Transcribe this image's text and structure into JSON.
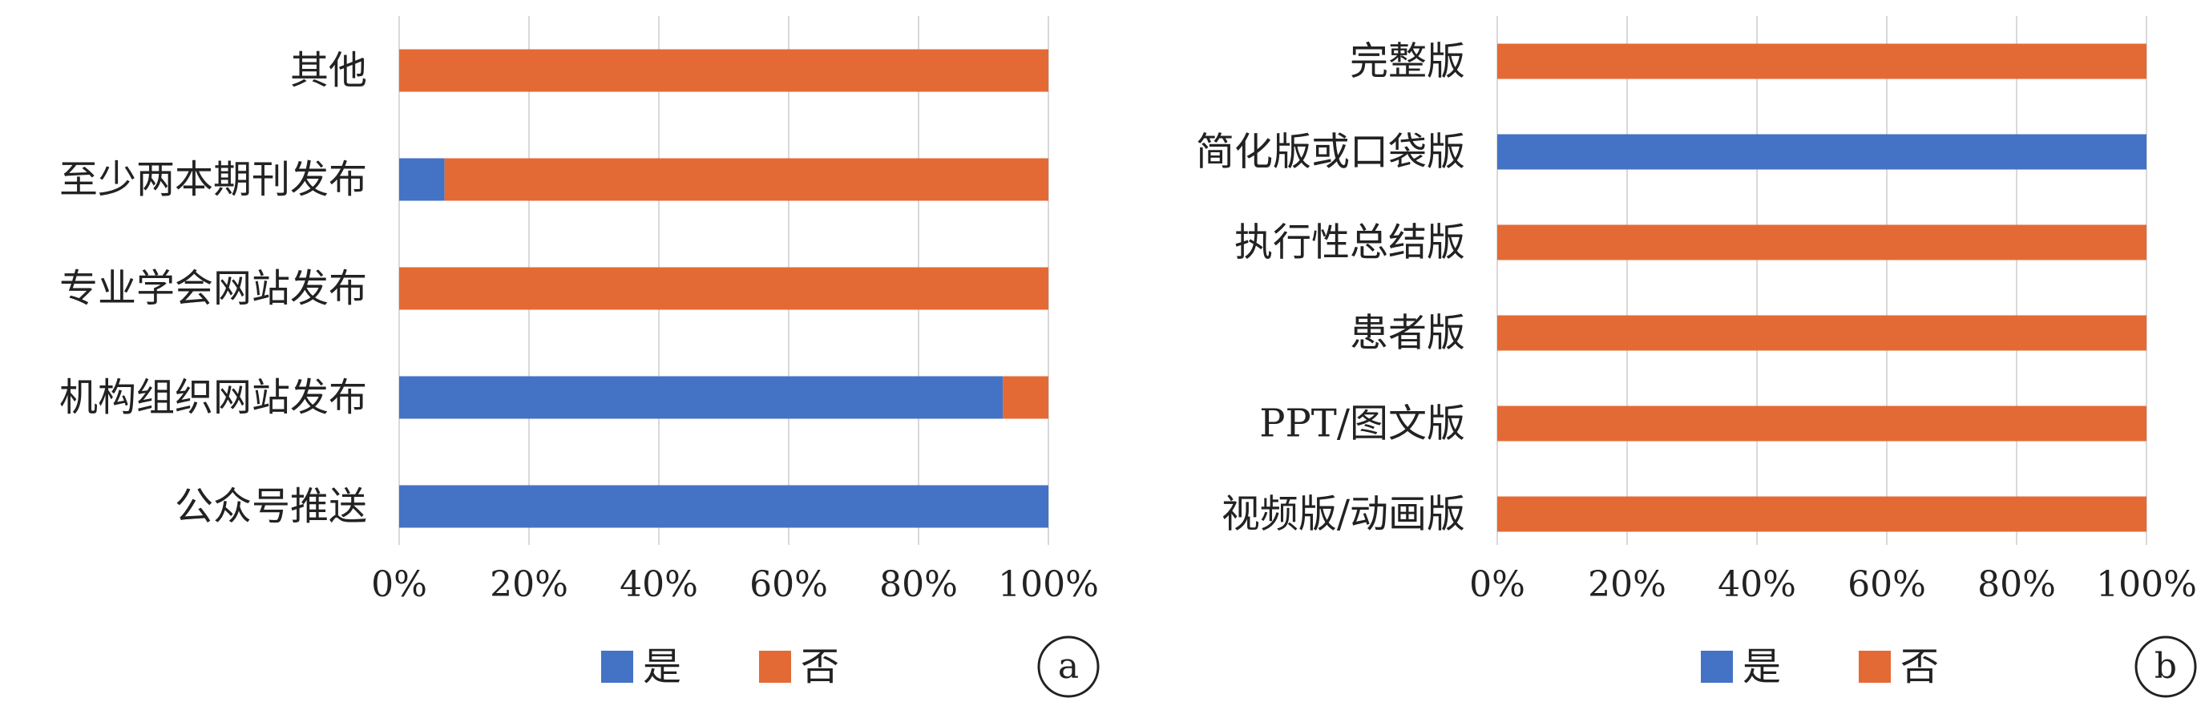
{
  "colors": {
    "yes": "#4472C4",
    "no": "#E46A35",
    "grid": "#d9d9d9",
    "text": "#222222"
  },
  "chart_data": [
    {
      "type": "bar",
      "orientation": "horizontal",
      "stacked": "percent",
      "panel_label": "a",
      "categories": [
        "其他",
        "至少两本期刊发布",
        "专业学会网站发布",
        "机构组织网站发布",
        "公众号推送"
      ],
      "series": [
        {
          "name": "是",
          "values": [
            0,
            7,
            0,
            93,
            100
          ]
        },
        {
          "name": "否",
          "values": [
            100,
            93,
            100,
            7,
            0
          ]
        }
      ],
      "xticks": [
        "0%",
        "20%",
        "40%",
        "60%",
        "80%",
        "100%"
      ],
      "xlim": [
        0,
        100
      ],
      "grid": "vertical",
      "legend": "bottom"
    },
    {
      "type": "bar",
      "orientation": "horizontal",
      "stacked": "percent",
      "panel_label": "b",
      "categories": [
        "完整版",
        "简化版或口袋版",
        "执行性总结版",
        "患者版",
        "PPT/图文版",
        "视频版/动画版"
      ],
      "series": [
        {
          "name": "是",
          "values": [
            0,
            100,
            0,
            0,
            0,
            0
          ]
        },
        {
          "name": "否",
          "values": [
            100,
            0,
            100,
            100,
            100,
            100
          ]
        }
      ],
      "xticks": [
        "0%",
        "20%",
        "40%",
        "60%",
        "80%",
        "100%"
      ],
      "xlim": [
        0,
        100
      ],
      "grid": "vertical",
      "legend": "bottom"
    }
  ]
}
